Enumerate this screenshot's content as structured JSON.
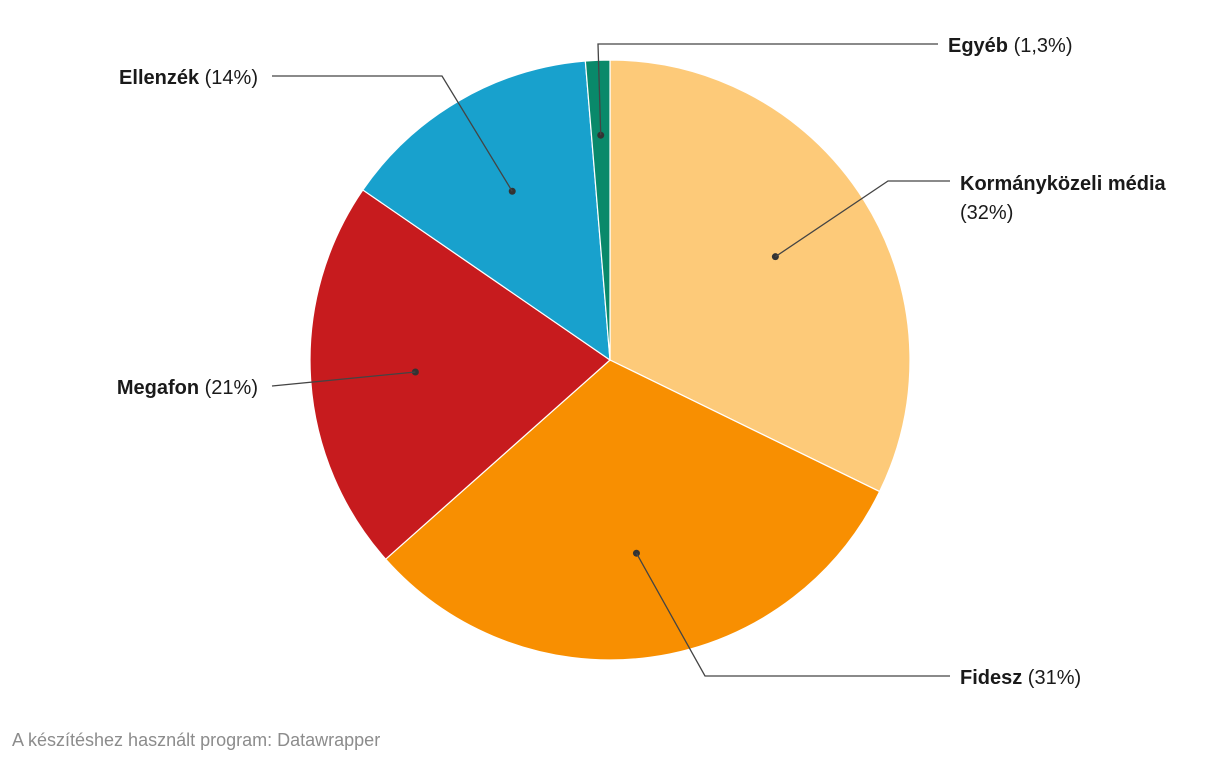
{
  "chart_data": {
    "type": "pie",
    "slices": [
      {
        "label": "Kormányközeli média",
        "value": 32,
        "value_label": "(32%)",
        "color": "#fdca79"
      },
      {
        "label": "Fidesz",
        "value": 31,
        "value_label": "(31%)",
        "color": "#f88f01"
      },
      {
        "label": "Megafon",
        "value": 21,
        "value_label": "(21%)",
        "color": "#c71b1e"
      },
      {
        "label": "Ellenzék",
        "value": 14,
        "value_label": "(14%)",
        "color": "#18a1cd"
      },
      {
        "label": "Egyéb",
        "value": 1.3,
        "value_label": "(1,3%)",
        "color": "#09896a"
      }
    ]
  },
  "footer": {
    "text": "A készítéshez használt program: Datawrapper"
  }
}
